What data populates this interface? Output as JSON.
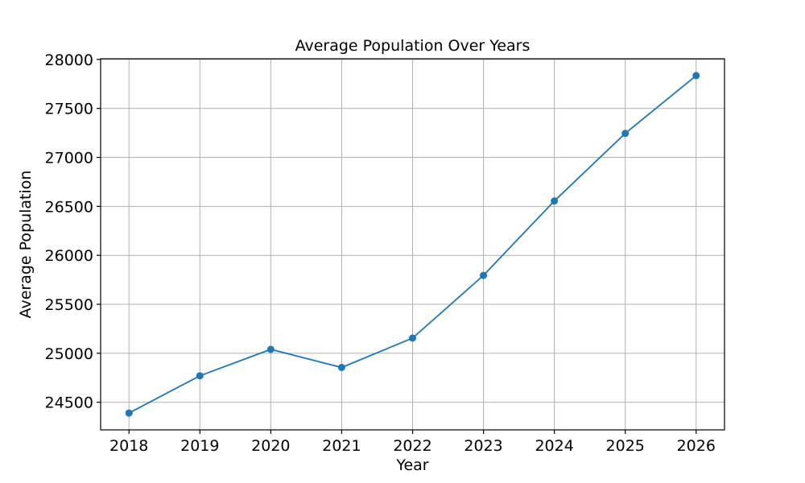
{
  "chart_data": {
    "type": "line",
    "title": "Average Population Over Years",
    "xlabel": "Year",
    "ylabel": "Average Population",
    "x": [
      2018,
      2019,
      2020,
      2021,
      2022,
      2023,
      2024,
      2025,
      2026
    ],
    "series": [
      {
        "values": [
          24390,
          24770,
          25040,
          24855,
          25155,
          25795,
          26555,
          27245,
          27835
        ],
        "color": "#1f77b4",
        "marker": "circle"
      }
    ],
    "x_ticks": [
      "2018",
      "2019",
      "2020",
      "2021",
      "2022",
      "2023",
      "2024",
      "2025",
      "2026"
    ],
    "y_ticks": [
      "24500",
      "25000",
      "25500",
      "26000",
      "26500",
      "27000",
      "27500",
      "28000"
    ],
    "xlim": [
      2017.6,
      2026.4
    ],
    "ylim": [
      24218,
      28007
    ],
    "grid": true,
    "legend": "none"
  }
}
